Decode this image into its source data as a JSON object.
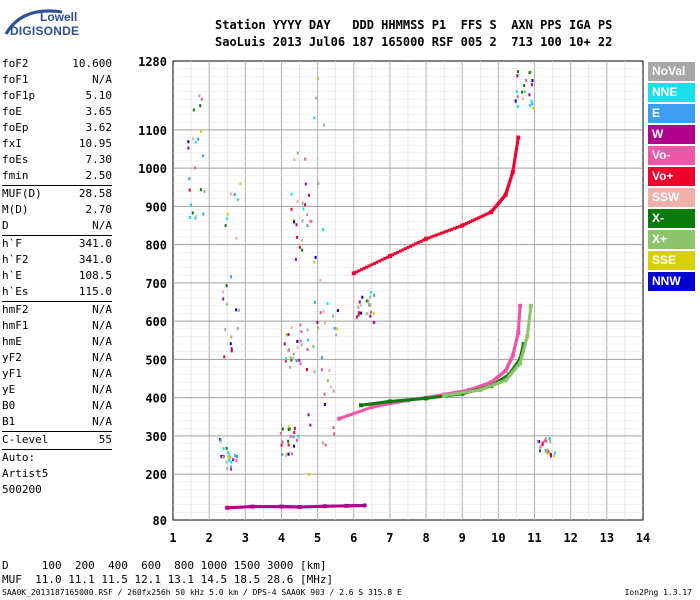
{
  "logo": {
    "line1": "Lowell",
    "line2": "DIGISONDE"
  },
  "header": {
    "line1": "Station YYYY DAY   DDD HHMMSS P1  FFS S  AXN PPS IGA PS",
    "line2": "SaoLuis 2013 Jul06 187 165000 RSF 005 2  713 100 10+ 22"
  },
  "params": [
    {
      "label": "foF2",
      "value": "10.600"
    },
    {
      "label": "foF1",
      "value": "N/A"
    },
    {
      "label": "foF1p",
      "value": "5.10"
    },
    {
      "label": "foE",
      "value": "3.65"
    },
    {
      "label": "foEp",
      "value": "3.62"
    },
    {
      "label": "fxI",
      "value": "10.95"
    },
    {
      "label": "foEs",
      "value": "7.30"
    },
    {
      "label": "fmin",
      "value": "2.50"
    },
    {
      "label": "MUF(D)",
      "value": "28.58"
    },
    {
      "label": "M(D)",
      "value": "2.70"
    },
    {
      "label": "D",
      "value": "N/A"
    },
    {
      "label": "h`F",
      "value": "341.0"
    },
    {
      "label": "h`F2",
      "value": "341.0"
    },
    {
      "label": "h`E",
      "value": "108.5"
    },
    {
      "label": "h`Es",
      "value": "115.0"
    },
    {
      "label": "hmF2",
      "value": "N/A"
    },
    {
      "label": "hmF1",
      "value": "N/A"
    },
    {
      "label": "hmE",
      "value": "N/A"
    },
    {
      "label": "yF2",
      "value": "N/A"
    },
    {
      "label": "yF1",
      "value": "N/A"
    },
    {
      "label": "yE",
      "value": "N/A"
    },
    {
      "label": "B0",
      "value": "N/A"
    },
    {
      "label": "B1",
      "value": "N/A"
    },
    {
      "label": "C-level",
      "value": "55"
    },
    {
      "label": "Auto:",
      "value": ""
    },
    {
      "label": "Artist5",
      "value": ""
    },
    {
      "label": "500200",
      "value": ""
    }
  ],
  "legend": [
    {
      "label": "NoVal",
      "color": "#a8a8a8"
    },
    {
      "label": "NNE",
      "color": "#17e0e8"
    },
    {
      "label": "E",
      "color": "#3a9ff0"
    },
    {
      "label": "W",
      "color": "#b0008c"
    },
    {
      "label": "Vo-",
      "color": "#f055a8"
    },
    {
      "label": "Vo+",
      "color": "#f0002c"
    },
    {
      "label": "SSW",
      "color": "#f0b0a8"
    },
    {
      "label": "X-",
      "color": "#0a7a0a"
    },
    {
      "label": "X+",
      "color": "#8cc46c"
    },
    {
      "label": "SSE",
      "color": "#d8d000"
    },
    {
      "label": "NNW",
      "color": "#0000d0"
    }
  ],
  "footer": {
    "line1": "D     100  200  400  600  800 1000 1500 3000 [km]",
    "line2": "MUF  11.0 11.1 11.5 12.1 13.1 14.5 18.5 28.6 [MHz]",
    "small": "SAA0K_2013187165000.RSF / 260fx256h 50 kHz 5.0 km / DPS-4 SAA0K 903 / 2.6 S 315.8 E",
    "version": "Ion2Png 1.3.17"
  },
  "chart_data": {
    "type": "scatter",
    "xlabel": "",
    "ylabel": "",
    "xlim": [
      1,
      14
    ],
    "ylim": [
      80,
      1280
    ],
    "x_ticks": [
      "1",
      "2",
      "3",
      "4",
      "5",
      "6",
      "7",
      "8",
      "9",
      "10",
      "11",
      "12",
      "13",
      "14"
    ],
    "y_ticks": [
      "1280",
      "1100",
      "1000",
      "900",
      "800",
      "700",
      "600",
      "500",
      "400",
      "300",
      "200",
      "80"
    ],
    "y_tick_values": [
      1280,
      1100,
      1000,
      900,
      800,
      700,
      600,
      500,
      400,
      300,
      200,
      80
    ],
    "grid": true,
    "series": [
      {
        "name": "Vo-",
        "color": "#f055a8",
        "x": [
          5.6,
          6.5,
          7.5,
          8.5,
          9.2,
          9.8,
          10.2,
          10.4,
          10.55,
          10.6
        ],
        "y": [
          345,
          375,
          393,
          408,
          420,
          440,
          470,
          510,
          570,
          640
        ]
      },
      {
        "name": "X-",
        "color": "#0a7a0a",
        "x": [
          6.2,
          7.0,
          8.0,
          9.0,
          9.8,
          10.3,
          10.6,
          10.7
        ],
        "y": [
          380,
          390,
          398,
          410,
          430,
          460,
          500,
          540
        ]
      },
      {
        "name": "X+",
        "color": "#8cc46c",
        "x": [
          8.5,
          9.5,
          10.2,
          10.6,
          10.8,
          10.9
        ],
        "y": [
          405,
          420,
          445,
          490,
          560,
          640
        ]
      },
      {
        "name": "Vo+",
        "color": "#f0002c",
        "x": [
          6.0,
          7.0,
          8.0,
          9.0,
          9.8,
          10.2,
          10.4,
          10.55
        ],
        "y": [
          725,
          770,
          815,
          850,
          885,
          930,
          990,
          1080
        ]
      },
      {
        "name": "W",
        "color": "#b0008c",
        "x": [
          2.5,
          3.2,
          4.0,
          4.5,
          5.2,
          5.8,
          6.3
        ],
        "y": [
          112,
          115,
          115,
          114,
          116,
          117,
          118
        ]
      }
    ]
  }
}
